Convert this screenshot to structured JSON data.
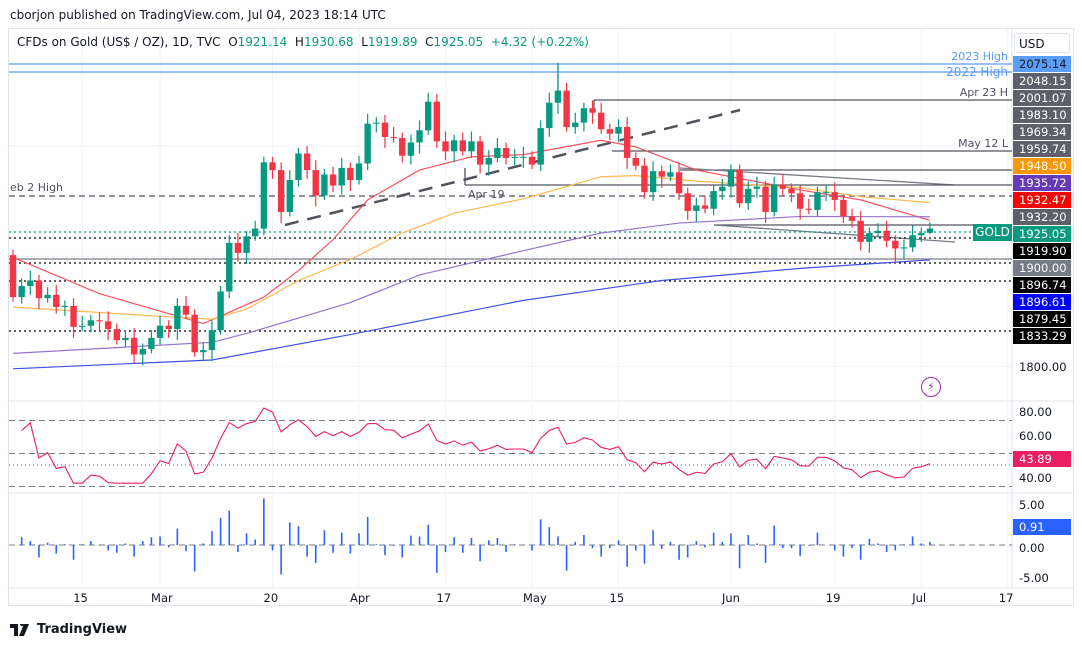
{
  "publish_line": "cborjon published on TradingView.com, Jul 04, 2023 18:14 UTC",
  "legend": {
    "symbol": "CFDs on Gold (US$ / OZ), 1D, TVC",
    "o_label": "O",
    "o": "1921.14",
    "h_label": "H",
    "h": "1930.68",
    "l_label": "L",
    "l": "1919.89",
    "c_label": "C",
    "c": "1925.05",
    "change": "+4.32 (+0.22%)"
  },
  "currency": "USD",
  "symbol_tag": "GOLD",
  "colors": {
    "up": "#089981",
    "down": "#f23645",
    "ma20": "#f7525f",
    "ma50": "#ffb74d",
    "ma100": "#9575cd",
    "ma200": "#3f51e8",
    "rsi": "#e91e63",
    "hist": "#2962ff"
  },
  "price_labels": [
    {
      "text": "2075.14",
      "bg": "#5b9cf6",
      "fg": "#131722"
    },
    {
      "text": "2048.15",
      "bg": "#5d606b",
      "fg": "#ffffff"
    },
    {
      "text": "2001.07",
      "bg": "#5d606b",
      "fg": "#ffffff"
    },
    {
      "text": "1983.10",
      "bg": "#5d606b",
      "fg": "#ffffff"
    },
    {
      "text": "1969.34",
      "bg": "#5d606b",
      "fg": "#ffffff"
    },
    {
      "text": "1959.74",
      "bg": "#5d606b",
      "fg": "#ffffff"
    },
    {
      "text": "1948.50",
      "bg": "#ff9800",
      "fg": "#ffffff"
    },
    {
      "text": "1935.72",
      "bg": "#673ab7",
      "fg": "#ffffff"
    },
    {
      "text": "1932.47",
      "bg": "#ff0000",
      "fg": "#ffffff"
    },
    {
      "text": "1932.20",
      "bg": "#5d606b",
      "fg": "#ffffff"
    },
    {
      "text": "1925.05",
      "bg": "#089981",
      "fg": "#ffffff"
    },
    {
      "text": "1919.90",
      "bg": "#000000",
      "fg": "#ffffff"
    },
    {
      "text": "1900.00",
      "bg": "#787b86",
      "fg": "#ffffff"
    },
    {
      "text": "1896.74",
      "bg": "#000000",
      "fg": "#ffffff"
    },
    {
      "text": "1896.61",
      "bg": "#0000ff",
      "fg": "#ffffff"
    },
    {
      "text": "1879.45",
      "bg": "#000000",
      "fg": "#ffffff"
    },
    {
      "text": "1833.29",
      "bg": "#000000",
      "fg": "#ffffff"
    },
    {
      "text": "1800.00",
      "bg": "",
      "fg": "#131722"
    }
  ],
  "annotations": {
    "h2023": "2023 High",
    "h2022": "2022 High",
    "apr23": "Apr 23 H",
    "may12": "May 12 L",
    "feb2": "eb 2 High",
    "apr19": "Apr 19"
  },
  "chart_data": {
    "type": "candlestick",
    "title": "CFDs on Gold (US$ / OZ), 1D, TVC",
    "x_ticks": [
      {
        "bar": 8,
        "label": "15"
      },
      {
        "bar": 17,
        "label": "Mar"
      },
      {
        "bar": 30,
        "label": "20"
      },
      {
        "bar": 40,
        "label": "Apr"
      },
      {
        "bar": 50,
        "label": "17"
      },
      {
        "bar": 60,
        "label": "May"
      },
      {
        "bar": 70,
        "label": "15"
      },
      {
        "bar": 83,
        "label": "Jun"
      },
      {
        "bar": 95,
        "label": "19"
      },
      {
        "bar": 105,
        "label": "Jul"
      },
      {
        "bar": 115,
        "label": "17"
      }
    ],
    "ylim": [
      1770,
      2100
    ],
    "first_open": 1901,
    "close": [
      1863,
      1873,
      1878,
      1862,
      1865,
      1854,
      1855,
      1836,
      1837,
      1842,
      1841,
      1834,
      1824,
      1826,
      1811,
      1816,
      1826,
      1837,
      1834,
      1855,
      1847,
      1813,
      1815,
      1833,
      1868,
      1912,
      1903,
      1918,
      1925,
      1985,
      1978,
      1940,
      1969,
      1993,
      1978,
      1955,
      1974,
      1964,
      1980,
      1969,
      1984,
      2020,
      2021,
      2008,
      2007,
      1991,
      2003,
      2014,
      2040,
      2004,
      1995,
      2005,
      1995,
      2004,
      1983,
      1989,
      1998,
      1989,
      1990,
      1990,
      1983,
      2016,
      2039,
      2050,
      2017,
      2021,
      2034,
      2030,
      2015,
      2011,
      2017,
      1989,
      1982,
      1958,
      1977,
      1972,
      1976,
      1957,
      1941,
      1946,
      1943,
      1959,
      1963,
      1978,
      1948,
      1961,
      1963,
      1940,
      1965,
      1961,
      1957,
      1943,
      1942,
      1958,
      1958,
      1951,
      1936,
      1932,
      1913,
      1921,
      1923,
      1914,
      1907,
      1908,
      1919,
      1921,
      1925.05
    ],
    "open_overrides": {
      "106": 1921.14
    },
    "high_overrides": {
      "63": 2075.14,
      "106": 1930.68,
      "29": 1990,
      "48": 2048,
      "83": 1983
    },
    "low_overrides": {
      "106": 1919.89,
      "21": 1809,
      "102": 1893,
      "96": 1930
    },
    "moving_averages": [
      {
        "name": "MA20",
        "color": "#f7525f",
        "points": [
          [
            0,
            1899
          ],
          [
            10,
            1866
          ],
          [
            22,
            1839
          ],
          [
            29,
            1863
          ],
          [
            33,
            1887
          ],
          [
            37,
            1915
          ],
          [
            41,
            1951
          ],
          [
            47,
            1978
          ],
          [
            53,
            1990
          ],
          [
            59,
            1992
          ],
          [
            68,
            2005
          ],
          [
            72,
            1999
          ],
          [
            79,
            1978
          ],
          [
            91,
            1960
          ],
          [
            98,
            1951
          ],
          [
            106,
            1932.5
          ]
        ]
      },
      {
        "name": "MA50",
        "color": "#ffb74d",
        "points": [
          [
            0,
            1854
          ],
          [
            16,
            1846
          ],
          [
            23,
            1843
          ],
          [
            27,
            1852
          ],
          [
            33,
            1878
          ],
          [
            39,
            1897
          ],
          [
            45,
            1921
          ],
          [
            51,
            1939
          ],
          [
            59,
            1952
          ],
          [
            68,
            1972
          ],
          [
            72,
            1973
          ],
          [
            79,
            1968
          ],
          [
            91,
            1962
          ],
          [
            98,
            1954
          ],
          [
            106,
            1948.5
          ]
        ]
      },
      {
        "name": "MA100",
        "color": "#9575cd",
        "points": [
          [
            0,
            1812
          ],
          [
            23,
            1822
          ],
          [
            27,
            1830
          ],
          [
            39,
            1858
          ],
          [
            47,
            1883
          ],
          [
            59,
            1905
          ],
          [
            68,
            1921
          ],
          [
            77,
            1930
          ],
          [
            91,
            1936
          ],
          [
            106,
            1935.7
          ]
        ]
      },
      {
        "name": "MA200",
        "color": "#3f51e8",
        "points": [
          [
            0,
            1798
          ],
          [
            23,
            1806
          ],
          [
            39,
            1829
          ],
          [
            59,
            1860
          ],
          [
            75,
            1878
          ],
          [
            91,
            1889
          ],
          [
            106,
            1896.6
          ]
        ]
      }
    ],
    "levels": [
      2075.14,
      2070,
      2001.07,
      1959.74,
      1932.2,
      1925.05,
      1919.9,
      1900.0,
      1896.74,
      1879.45,
      1833.29
    ],
    "rsi": {
      "ticks": [
        "80.00",
        "60.00",
        "40.00"
      ],
      "last": "43.89",
      "bands": [
        70,
        50,
        30
      ]
    },
    "histogram": {
      "ticks": [
        "5.00",
        "0.00",
        "-5.00"
      ],
      "last": "0.91"
    }
  },
  "footer": {
    "brand": "TradingView"
  }
}
